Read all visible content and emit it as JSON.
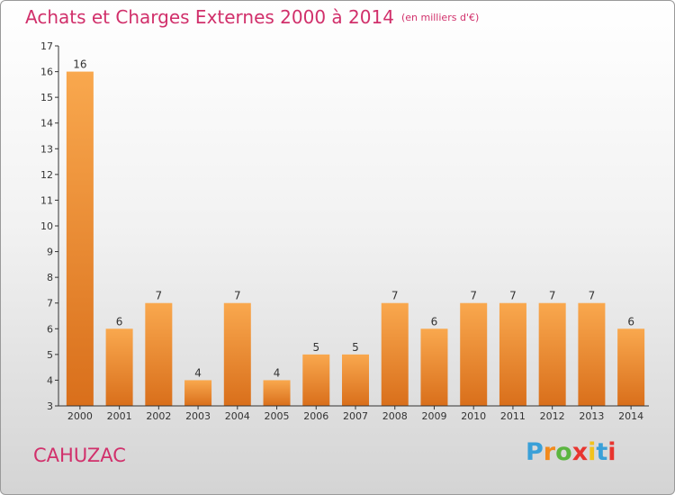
{
  "header": {
    "title": "Achats et Charges Externes 2000 à 2014",
    "unit": "(en milliers d'€)"
  },
  "place": "CAHUZAC",
  "logo": {
    "letters": [
      "P",
      "r",
      "o",
      "x",
      "i",
      "t",
      "i"
    ],
    "colors": [
      "#3aa0d8",
      "#f28a1c",
      "#5bb540",
      "#e8352f",
      "#f2c21c",
      "#3aa0d8",
      "#e8352f"
    ]
  },
  "colors": {
    "title": "#d1306b",
    "bar_light": "#f9a84e",
    "bar_dark": "#d96f1b",
    "axis": "#333333"
  },
  "chart_data": {
    "type": "bar",
    "categories": [
      "2000",
      "2001",
      "2002",
      "2003",
      "2004",
      "2005",
      "2006",
      "2007",
      "2008",
      "2009",
      "2010",
      "2011",
      "2012",
      "2013",
      "2014"
    ],
    "values": [
      16,
      6,
      7,
      4,
      7,
      4,
      5,
      5,
      7,
      6,
      7,
      7,
      7,
      7,
      6
    ],
    "ylim": [
      3,
      17
    ],
    "yticks": [
      3,
      4,
      5,
      6,
      7,
      8,
      9,
      10,
      11,
      12,
      13,
      14,
      15,
      16,
      17
    ],
    "grid": false,
    "data_labels": true
  }
}
